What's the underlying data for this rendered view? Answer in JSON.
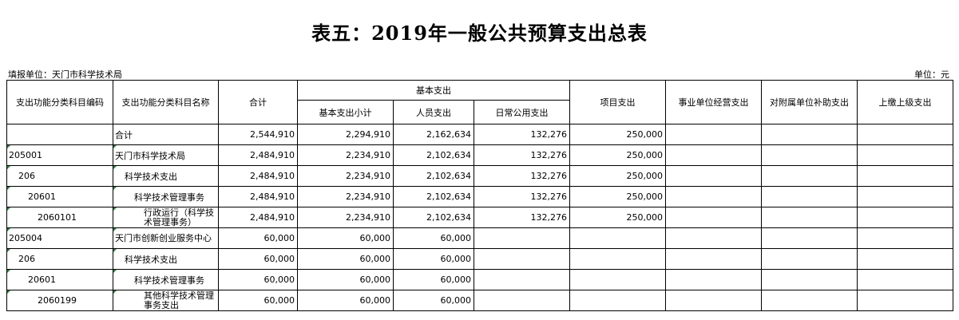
{
  "title": "表五：2019年一般公共预算支出总表",
  "unit_left": "填报单位：天门市科学技术局",
  "unit_right": "单位：元",
  "headers": {
    "code": "支出功能分类科目编码",
    "name": "支出功能分类科目名称",
    "total": "合计",
    "basic": "基本支出",
    "basic_subtotal": "基本支出小计",
    "personnel": "人员支出",
    "public": "日常公用支出",
    "project": "项目支出",
    "business": "事业单位经营支出",
    "subsidy": "对附属单位补助支出",
    "upper": "上缴上级支出"
  },
  "rows": [
    {
      "code": "",
      "name": "合计",
      "total": "2,544,910",
      "basic_subtotal": "2,294,910",
      "personnel": "2,162,634",
      "public": "132,276",
      "project": "250,000",
      "business": "",
      "subsidy": "",
      "upper": ""
    },
    {
      "code": "205001",
      "name": "天门市科学技术局",
      "total": "2,484,910",
      "basic_subtotal": "2,234,910",
      "personnel": "2,102,634",
      "public": "132,276",
      "project": "250,000",
      "business": "",
      "subsidy": "",
      "upper": ""
    },
    {
      "code": "206",
      "name": "科学技术支出",
      "total": "2,484,910",
      "basic_subtotal": "2,234,910",
      "personnel": "2,102,634",
      "public": "132,276",
      "project": "250,000",
      "business": "",
      "subsidy": "",
      "upper": ""
    },
    {
      "code": "20601",
      "name": "科学技术管理事务",
      "total": "2,484,910",
      "basic_subtotal": "2,234,910",
      "personnel": "2,102,634",
      "public": "132,276",
      "project": "250,000",
      "business": "",
      "subsidy": "",
      "upper": ""
    },
    {
      "code": "2060101",
      "name": "行政运行（科学技术管理事务）",
      "total": "2,484,910",
      "basic_subtotal": "2,234,910",
      "personnel": "2,102,634",
      "public": "132,276",
      "project": "250,000",
      "business": "",
      "subsidy": "",
      "upper": ""
    },
    {
      "code": "205004",
      "name": "天门市创新创业服务中心",
      "total": "60,000",
      "basic_subtotal": "60,000",
      "personnel": "60,000",
      "public": "",
      "project": "",
      "business": "",
      "subsidy": "",
      "upper": ""
    },
    {
      "code": "206",
      "name": "科学技术支出",
      "total": "60,000",
      "basic_subtotal": "60,000",
      "personnel": "60,000",
      "public": "",
      "project": "",
      "business": "",
      "subsidy": "",
      "upper": ""
    },
    {
      "code": "20601",
      "name": "科学技术管理事务",
      "total": "60,000",
      "basic_subtotal": "60,000",
      "personnel": "60,000",
      "public": "",
      "project": "",
      "business": "",
      "subsidy": "",
      "upper": ""
    },
    {
      "code": "2060199",
      "name": "其他科学技术管理事务支出",
      "total": "60,000",
      "basic_subtotal": "60,000",
      "personnel": "60,000",
      "public": "",
      "project": "",
      "business": "",
      "subsidy": "",
      "upper": ""
    }
  ]
}
